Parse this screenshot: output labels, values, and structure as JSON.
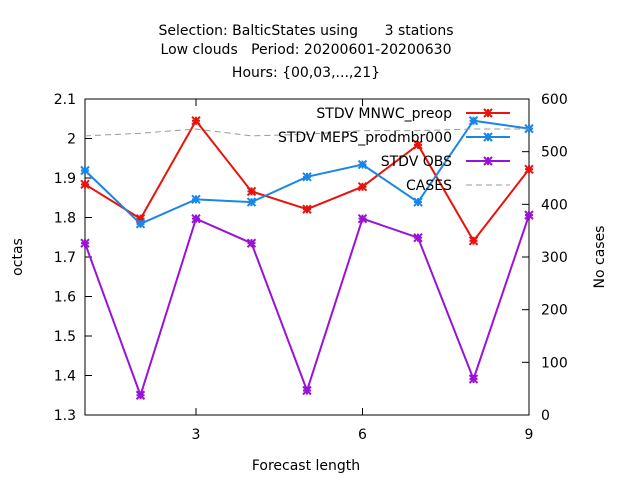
{
  "chart_data": {
    "type": "line",
    "title_lines": [
      "Selection: BalticStates using      3 stations",
      "Low clouds   Period: 20200601-20200630",
      "Hours: {00,03,...,21}"
    ],
    "xlabel": "Forecast length",
    "ylabel": "octas",
    "y2label": "No cases",
    "xlim": [
      1,
      9
    ],
    "ylim": [
      1.3,
      2.1
    ],
    "y2lim": [
      0,
      600
    ],
    "xticks": [
      "3",
      "6",
      "9"
    ],
    "yticks": [
      "1.3",
      "1.4",
      "1.5",
      "1.6",
      "1.7",
      "1.8",
      "1.9",
      "2",
      "2.1"
    ],
    "y2ticks": [
      "0",
      "100",
      "200",
      "300",
      "400",
      "500",
      "600"
    ],
    "grid": false,
    "legend_position": "top-right",
    "series": [
      {
        "name": "STDV MNWC_preop",
        "color": "#e8130a",
        "marker": "x",
        "axis": "y",
        "x": [
          1,
          2,
          3,
          4,
          5,
          6,
          7,
          8,
          9
        ],
        "values": [
          1.884,
          1.797,
          2.045,
          1.866,
          1.821,
          1.878,
          1.984,
          1.741,
          1.922
        ]
      },
      {
        "name": "STDV MEPS_prodmbr000",
        "color": "#1a86e6",
        "marker": "x",
        "axis": "y",
        "x": [
          1,
          2,
          3,
          4,
          5,
          6,
          7,
          8,
          9
        ],
        "values": [
          1.919,
          1.784,
          1.846,
          1.839,
          1.903,
          1.934,
          1.839,
          2.045,
          2.025
        ]
      },
      {
        "name": "STDV OBS",
        "color": "#9a12da",
        "marker": "x",
        "axis": "y",
        "x": [
          1,
          2,
          3,
          4,
          5,
          6,
          7,
          8,
          9
        ],
        "values": [
          1.735,
          1.35,
          1.797,
          1.735,
          1.362,
          1.797,
          1.749,
          1.391,
          1.806
        ]
      },
      {
        "name": "CASES",
        "color": "#999999",
        "marker": "none",
        "dashed": true,
        "axis": "y2",
        "x": [
          1,
          2,
          3,
          4,
          5,
          6,
          7,
          8,
          9
        ],
        "values": [
          530,
          535,
          543,
          530,
          533,
          540,
          540,
          543,
          543
        ]
      }
    ]
  }
}
